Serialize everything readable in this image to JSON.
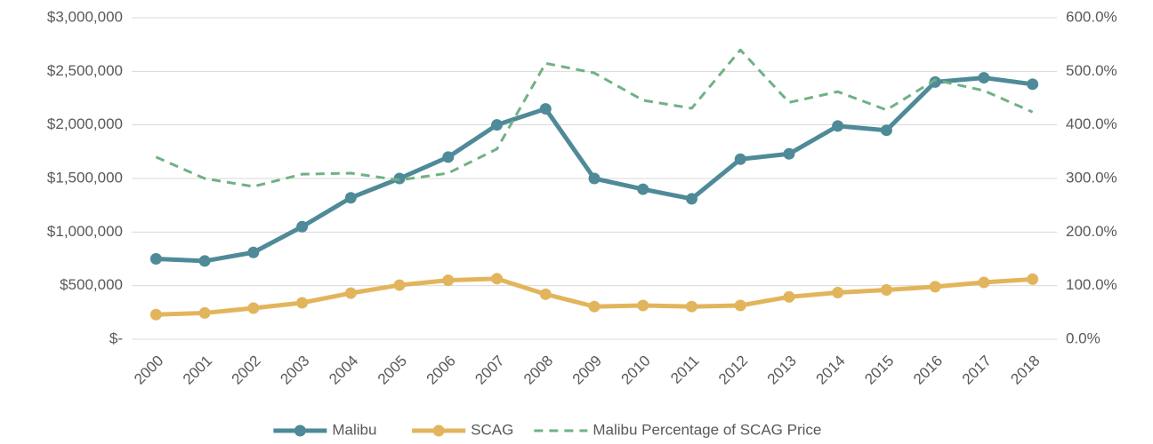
{
  "chart_data": {
    "type": "line",
    "categories": [
      "2000",
      "2001",
      "2002",
      "2003",
      "2004",
      "2005",
      "2006",
      "2007",
      "2008",
      "2009",
      "2010",
      "2011",
      "2012",
      "2013",
      "2014",
      "2015",
      "2016",
      "2017",
      "2018"
    ],
    "series": [
      {
        "name": "Malibu",
        "color": "#4f8a99",
        "markers": true,
        "line_style": "solid",
        "values": [
          750000,
          730000,
          810000,
          1050000,
          1320000,
          1500000,
          1700000,
          2000000,
          2150000,
          1500000,
          1400000,
          1310000,
          1680000,
          1730000,
          1990000,
          1950000,
          2400000,
          2440000,
          2380000
        ]
      },
      {
        "name": "SCAG",
        "color": "#e2b55c",
        "markers": true,
        "line_style": "solid",
        "values": [
          230000,
          245000,
          290000,
          340000,
          430000,
          505000,
          550000,
          565000,
          420000,
          305000,
          315000,
          305000,
          315000,
          395000,
          435000,
          460000,
          490000,
          530000,
          560000
        ]
      },
      {
        "name": "Malibu Percentage of SCAG Price",
        "color": "#6fb185",
        "markers": false,
        "line_style": "dashed",
        "axis": "y2",
        "values": [
          340,
          300,
          285,
          308,
          310,
          297,
          310,
          355,
          515,
          497,
          446,
          431,
          540,
          442,
          462,
          428,
          484,
          464,
          424
        ]
      }
    ],
    "ylim": [
      0,
      3000000
    ],
    "yticks": [
      {
        "value": 0,
        "label": "$-"
      },
      {
        "value": 500000,
        "label": "$500,000"
      },
      {
        "value": 1000000,
        "label": "$1,000,000"
      },
      {
        "value": 1500000,
        "label": "$1,500,000"
      },
      {
        "value": 2000000,
        "label": "$2,000,000"
      },
      {
        "value": 2500000,
        "label": "$2,500,000"
      },
      {
        "value": 3000000,
        "label": "$3,000,000"
      }
    ],
    "y2lim": [
      0,
      600
    ],
    "y2ticks": [
      {
        "value": 0,
        "label": "0.0%"
      },
      {
        "value": 100,
        "label": "100.0%"
      },
      {
        "value": 200,
        "label": "200.0%"
      },
      {
        "value": 300,
        "label": "300.0%"
      },
      {
        "value": 400,
        "label": "400.0%"
      },
      {
        "value": 500,
        "label": "500.0%"
      },
      {
        "value": 600,
        "label": "600.0%"
      }
    ],
    "grid": true,
    "legend": "bottom"
  }
}
